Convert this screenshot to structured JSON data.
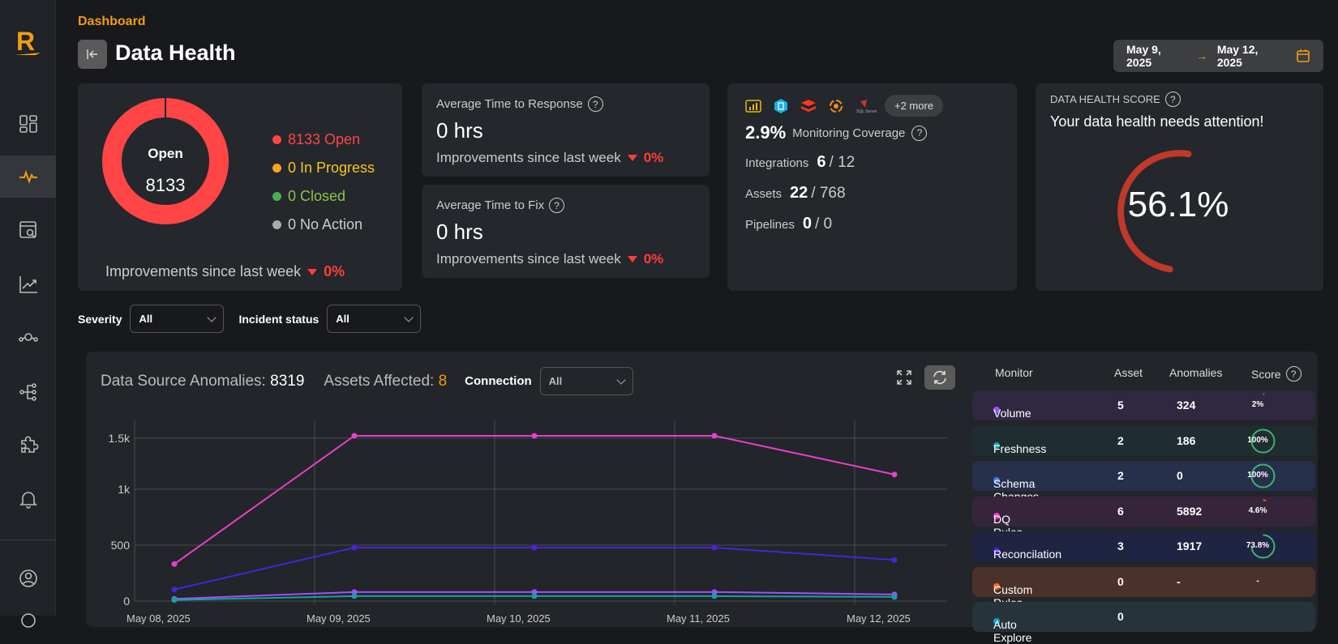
{
  "app": {
    "logo_letter": "R"
  },
  "sidebar": {
    "items": [
      {
        "name": "dashboard-grid-icon",
        "active": false
      },
      {
        "name": "pulse-icon",
        "active": true
      },
      {
        "name": "browser-search-icon",
        "active": false
      },
      {
        "name": "trend-chart-icon",
        "active": false
      },
      {
        "name": "pipeline-icon",
        "active": false
      },
      {
        "name": "lineage-icon",
        "active": false
      },
      {
        "name": "puzzle-icon",
        "active": false
      },
      {
        "name": "bell-icon",
        "active": false
      },
      {
        "name": "user-icon",
        "active": false
      }
    ]
  },
  "header": {
    "breadcrumb": "Dashboard",
    "title": "Data Health"
  },
  "date_range": {
    "start": "May 9, 2025",
    "arrow": "→",
    "end": "May 12, 2025"
  },
  "incidents": {
    "center_label": "Open",
    "center_value": "8133",
    "legend": [
      {
        "label": "8133 Open",
        "color": "#ff4545"
      },
      {
        "label": "0 In Progress",
        "color": "#f5a623"
      },
      {
        "label": "0 Closed",
        "color": "#4caf50"
      },
      {
        "label": "0 No Action",
        "color": "#aaaaaa"
      }
    ],
    "improvement_label": "Improvements since last week",
    "improvement_value": "0%"
  },
  "response_card": {
    "label": "Average Time to Response",
    "value": "0 hrs",
    "improvement_label": "Improvements since last week",
    "improvement_value": "0%"
  },
  "fix_card": {
    "label": "Average Time to Fix",
    "value": "0 hrs",
    "improvement_label": "Improvements since last week",
    "improvement_value": "0%"
  },
  "coverage": {
    "more_label": "+2 more",
    "percent": "2.9%",
    "label": "Monitoring Coverage",
    "integrations_label": "Integrations",
    "integrations_value": "6",
    "integrations_total": "/ 12",
    "assets_label": "Assets",
    "assets_value": "22",
    "assets_total": "/ 768",
    "pipelines_label": "Pipelines",
    "pipelines_value": "0",
    "pipelines_total": "/ 0"
  },
  "health_score": {
    "title": "DATA HEALTH SCORE",
    "message": "Your data health needs attention!",
    "value": "56.1%",
    "fraction": 0.561,
    "color": "#c0392b"
  },
  "filters": {
    "severity_label": "Severity",
    "severity_value": "All",
    "status_label": "Incident status",
    "status_value": "All"
  },
  "anomalies": {
    "title": "Data Source Anomalies:",
    "count": "8319",
    "assets_label": "Assets Affected:",
    "assets_count": "8",
    "connection_label": "Connection",
    "connection_value": "All"
  },
  "table": {
    "headers": [
      "Monitor",
      "Asset",
      "Anomalies",
      "Score"
    ],
    "rows": [
      {
        "monitor": "Volume",
        "asset": "5",
        "anomalies": "324",
        "score": "2%",
        "score_fraction": 0.02,
        "dot": "#a64dff",
        "bg": "#2f2840",
        "ring": "#e74c3c"
      },
      {
        "monitor": "Freshness",
        "asset": "2",
        "anomalies": "186",
        "score": "100%",
        "score_fraction": 1.0,
        "dot": "#14a3a3",
        "bg": "#1f2d30",
        "ring": "#3cb371"
      },
      {
        "monitor": "Schema Changes",
        "asset": "2",
        "anomalies": "0",
        "score": "100%",
        "score_fraction": 1.0,
        "dot": "#4a7be0",
        "bg": "#26304a",
        "ring": "#3cb371"
      },
      {
        "monitor": "DQ Rules",
        "asset": "6",
        "anomalies": "5892",
        "score": "4.6%",
        "score_fraction": 0.046,
        "dot": "#e83fcc",
        "bg": "#36243a",
        "ring": "#e74c3c"
      },
      {
        "monitor": "Reconcilation",
        "asset": "3",
        "anomalies": "1917",
        "score": "73.8%",
        "score_fraction": 0.738,
        "dot": "#4a22d8",
        "bg": "#1f2442",
        "ring": "#3cb371"
      },
      {
        "monitor": "Custom Rules",
        "asset": "0",
        "anomalies": "-",
        "score": "-",
        "score_fraction": null,
        "dot": "#ff6a2a",
        "bg": "#4a3129",
        "ring": null
      },
      {
        "monitor": "Auto Explore",
        "asset": "0",
        "anomalies": "",
        "score": "",
        "score_fraction": null,
        "dot": "#14a3d3",
        "bg": "#26333a",
        "ring": null
      }
    ]
  },
  "chart_data": {
    "type": "line",
    "title": "Data Source Anomalies",
    "x": [
      "May 08, 2025",
      "May 09, 2025",
      "May 10, 2025",
      "May 11, 2025",
      "May 12, 2025"
    ],
    "x_points": [
      "May 08 12:00",
      "May 09 12:00",
      "May 10 12:00",
      "May 11 12:00",
      "May 12 12:00"
    ],
    "yticks": [
      "0",
      "500",
      "1k",
      "1.5k"
    ],
    "ylim": [
      0,
      1550
    ],
    "grid": true,
    "series": [
      {
        "name": "DQ Rules",
        "color": "#e83fcc",
        "values": [
          331,
          1478,
          1478,
          1478,
          1132
        ]
      },
      {
        "name": "Reconcilation",
        "color": "#4a22d8",
        "values": [
          103,
          478,
          478,
          478,
          368
        ]
      },
      {
        "name": "Volume",
        "color": "#a64dff",
        "values": [
          20,
          81,
          81,
          81,
          59
        ]
      },
      {
        "name": "Freshness",
        "color": "#14a3a3",
        "values": [
          10,
          44,
          44,
          44,
          37
        ]
      }
    ]
  }
}
